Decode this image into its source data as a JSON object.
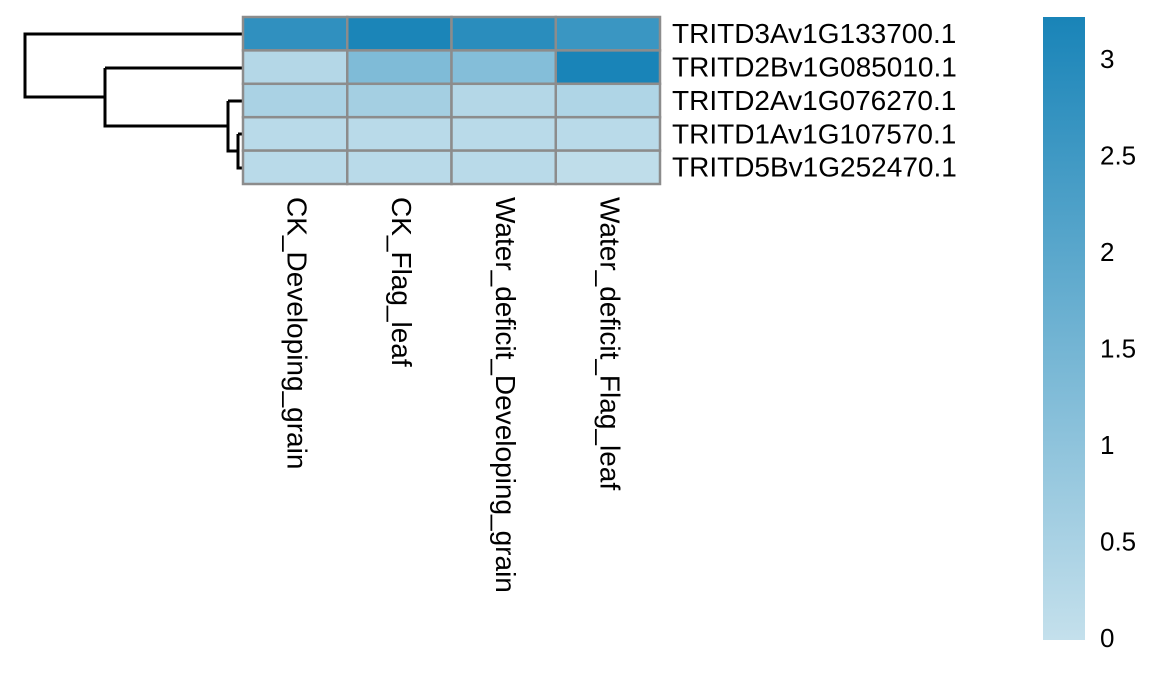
{
  "chart_data": {
    "type": "heatmap",
    "rows": [
      "TRITD3Av1G133700.1",
      "TRITD2Bv1G085010.1",
      "TRITD2Av1G076270.1",
      "TRITD1Av1G107570.1",
      "TRITD5Bv1G252470.1"
    ],
    "columns": [
      "CK_Developing_grain",
      "CK_Flag_leaf",
      "Water_deficit_Developing_grain",
      "Water_deficit_Flag_leaf"
    ],
    "values": [
      [
        2.8,
        3.2,
        2.9,
        2.6
      ],
      [
        0.3,
        1.3,
        1.2,
        3.23
      ],
      [
        0.5,
        0.6,
        0.3,
        0.4
      ],
      [
        0.2,
        0.2,
        0.2,
        0.2
      ],
      [
        0.2,
        0.2,
        0.2,
        0.1
      ]
    ],
    "color_range": [
      "#c4e0ec",
      "#1984b8"
    ],
    "clim": [
      0,
      3.23
    ],
    "cticks": [
      0,
      0.5,
      1,
      1.5,
      2,
      2.5,
      3
    ]
  }
}
